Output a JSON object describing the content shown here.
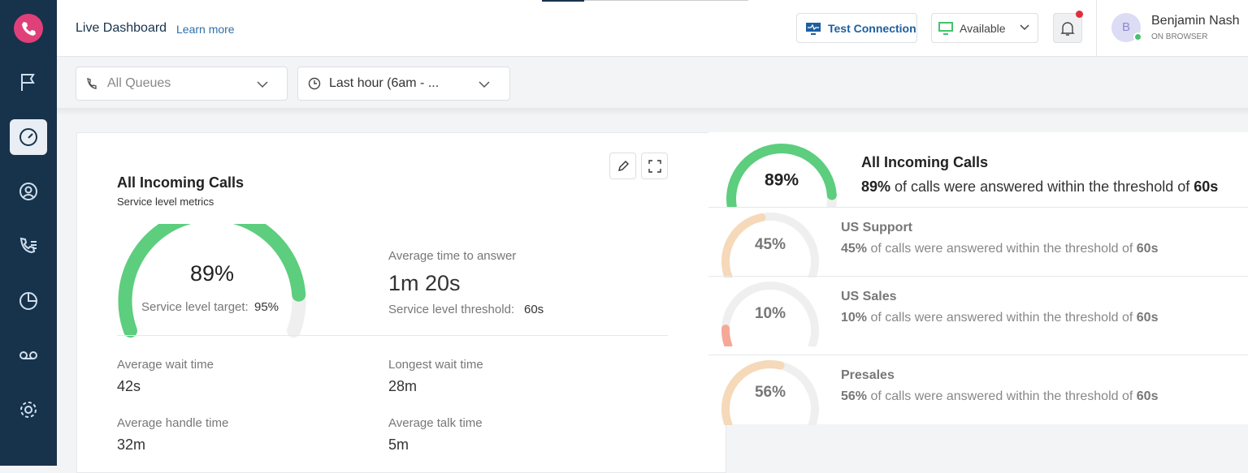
{
  "header": {
    "title": "Live Dashboard",
    "link": "Learn more",
    "test_connection": "Test Connection",
    "status": "Available",
    "user": {
      "initial": "B",
      "name": "Benjamin Nash",
      "mode": "ON BROWSER"
    }
  },
  "filters": {
    "queues": "All Queues",
    "time": "Last hour (6am - ..."
  },
  "card": {
    "title": "All Incoming Calls",
    "subtitle": "Service level metrics",
    "gauge": {
      "value": 89,
      "label": "89%",
      "color": "#5cce7e"
    },
    "target_label": "Service level target:",
    "target": "95%",
    "answer": {
      "label": "Average time to answer",
      "value": "1m 20s"
    },
    "threshold_label": "Service level threshold:",
    "threshold": "60s",
    "metrics": [
      {
        "label": "Average wait time",
        "value": "42s"
      },
      {
        "label": "Longest wait time",
        "value": "28m"
      },
      {
        "label": "Average handle time",
        "value": "32m"
      },
      {
        "label": "Average talk time",
        "value": "5m"
      }
    ]
  },
  "queues": [
    {
      "name": "All Incoming Calls",
      "gauge": {
        "value": 89,
        "label": "89%",
        "color": "#5cce7e"
      },
      "description": [
        "89%",
        " of calls were answered within the threshold of ",
        "60s"
      ]
    },
    {
      "name": "US Support",
      "gauge": {
        "value": 45,
        "label": "45%",
        "color": "#f5d9b9"
      },
      "description": [
        "45%",
        " of calls were answered within the threshold of ",
        "60s"
      ]
    },
    {
      "name": "US Sales",
      "gauge": {
        "value": 10,
        "label": "10%",
        "color": "#f5a898"
      },
      "description": [
        "10%",
        " of calls were answered within the threshold of ",
        "60s"
      ]
    },
    {
      "name": "Presales",
      "gauge": {
        "value": 56,
        "label": "56%",
        "color": "#f5d9b9"
      },
      "description": [
        "56%",
        " of calls were answered within the threshold of ",
        "60s"
      ]
    }
  ]
}
